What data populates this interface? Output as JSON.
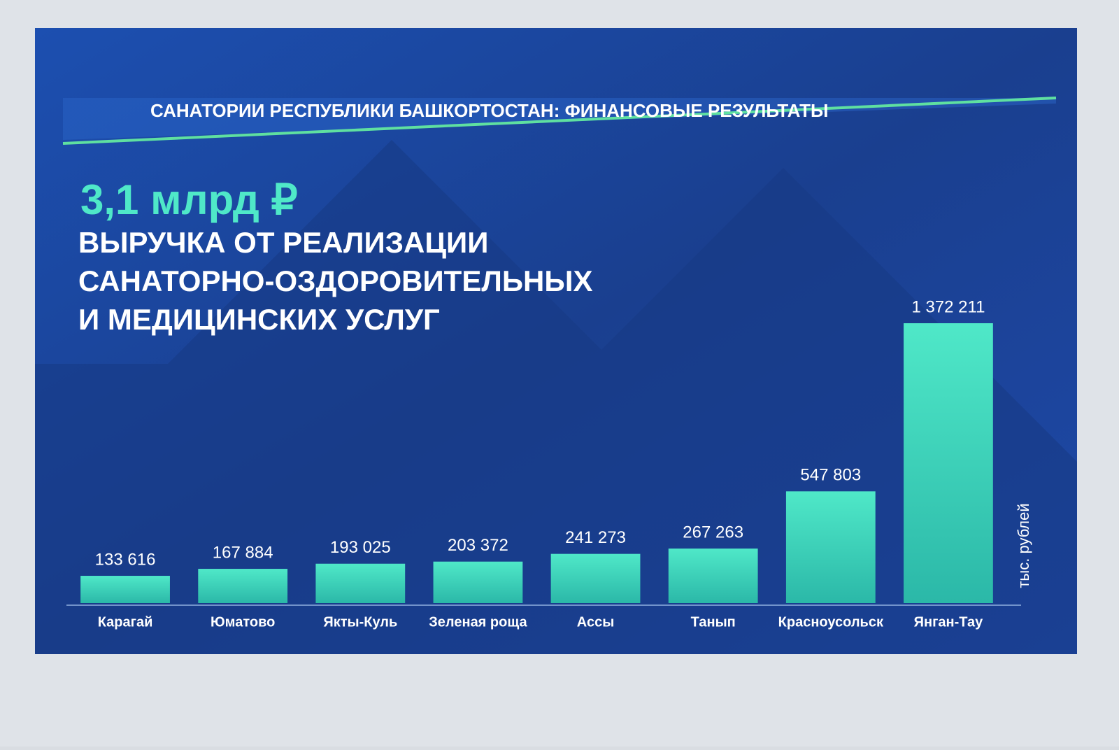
{
  "chart_data": {
    "type": "bar",
    "title": "САНАТОРИИ РЕСПУБЛИКИ БАШКОРТОСТАН: ФИНАНСОВЫЕ РЕЗУЛЬТАТЫ",
    "headline_figure": "3,1 млрд ₽",
    "subtitle": [
      "ВЫРУЧКА ОТ РЕАЛИЗАЦИИ",
      "САНАТОРНО-ОЗДОРОВИТЕЛЬНЫХ",
      "И МЕДИЦИНСКИХ УСЛУГ"
    ],
    "unit_label": "тыс. рублей",
    "categories": [
      "Карагай",
      "Юматово",
      "Якты-Куль",
      "Зеленая роща",
      "Ассы",
      "Танып",
      "Красноусольск",
      "Янган-Тау"
    ],
    "values": [
      133616,
      167884,
      193025,
      203372,
      241273,
      267263,
      547803,
      1372211
    ],
    "value_labels": [
      "133 616",
      "167 884",
      "193 025",
      "203 372",
      "241 273",
      "267 263",
      "547 803",
      "1 372 211"
    ],
    "color": "#3fe0c0"
  }
}
